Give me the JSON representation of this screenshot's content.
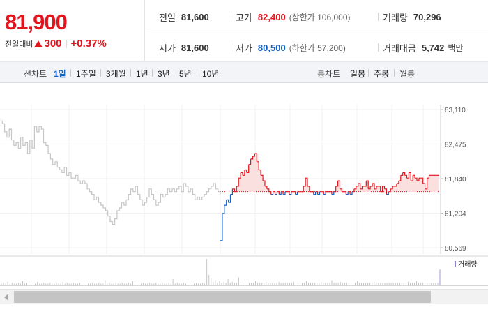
{
  "quote": {
    "price": "81,900",
    "change_label": "전일대비",
    "change_amount": "300",
    "change_pct": "+0.37%",
    "stats": [
      {
        "label": "전일",
        "value": "81,600",
        "sub": ""
      },
      {
        "label": "고가",
        "value": "82,400",
        "sub": "(상한가 106,000)",
        "tone": "up"
      },
      {
        "label": "거래량",
        "value": "70,296",
        "sub": ""
      },
      {
        "label": "시가",
        "value": "81,600",
        "sub": ""
      },
      {
        "label": "저가",
        "value": "80,500",
        "sub": "(하한가 57,200)",
        "tone": "dn"
      },
      {
        "label": "거래대금",
        "value": "5,742",
        "sub": "백만"
      }
    ],
    "colors": {
      "up": "#e4141e",
      "down": "#1261c4"
    }
  },
  "period": {
    "label": "선차트",
    "options": [
      "1일",
      "1주일",
      "3개월",
      "1년",
      "3년",
      "5년",
      "10년"
    ],
    "selected": "1일",
    "candle_label": "봉차트",
    "candle_options": [
      "일봉",
      "주봉",
      "월봉"
    ]
  },
  "chart_data": {
    "type": "line",
    "y_ticks": [
      "83,110",
      "82,475",
      "81,840",
      "81,204",
      "80,569"
    ],
    "y_tick_values": [
      83110,
      82475,
      81840,
      81204,
      80569
    ],
    "ylim": [
      80569,
      83110
    ],
    "baseline": 81600,
    "volume_label": "거래량",
    "series": [
      {
        "values": [
          82900,
          82850,
          82700,
          82600,
          82750,
          82550,
          82450,
          82500,
          82400,
          82600,
          82450,
          82500,
          82300,
          82550,
          82400,
          82800,
          82700,
          82800,
          82750,
          82500,
          82450,
          82300,
          82200,
          82100,
          82150,
          82050,
          82000,
          81950,
          82050,
          81900,
          81950,
          81850,
          81850,
          81900,
          81800,
          81750,
          81800,
          81750,
          81650,
          81600,
          81550,
          81450,
          81500,
          81400,
          81350,
          81300,
          81250,
          81150,
          81050,
          81000,
          81100,
          81250,
          81300,
          81400,
          81350,
          81450,
          81550,
          81650,
          81600,
          81700,
          81550,
          81450,
          81350,
          81400,
          81500,
          81650,
          81550,
          81450,
          81350,
          81400,
          81550,
          81500,
          81550,
          81650,
          81600,
          81650,
          81600,
          81650,
          81700,
          81600,
          81750,
          81700,
          81600,
          81650,
          81550,
          81450,
          81500,
          81450,
          81500,
          81550,
          81600,
          81650,
          81700,
          81750,
          81650,
          81600,
          81550
        ]
      },
      {
        "values": [
          80700,
          81200,
          81350,
          81450,
          81400,
          81550,
          81650,
          81600,
          81700,
          81850,
          81950,
          81900,
          82000,
          81950,
          82100,
          82200,
          82250,
          82300,
          82150,
          82000,
          81900,
          81800,
          81700,
          81650,
          81600,
          81550,
          81600,
          81550,
          81600,
          81550,
          81600,
          81550,
          81600,
          81600,
          81550,
          81600,
          81600,
          81550,
          81600,
          81600,
          81600,
          81700,
          81850,
          81700,
          81600,
          81600,
          81550,
          81600,
          81550,
          81600,
          81600,
          81550,
          81600,
          81600,
          81600,
          81550,
          81600,
          81700,
          81800,
          81650,
          81600,
          81600,
          81550,
          81600,
          81550,
          81600,
          81650,
          81700,
          81750,
          81650,
          81700,
          81700,
          81800,
          81650,
          81700,
          81750,
          81650,
          81700,
          81700,
          81600,
          81700,
          81650,
          81550,
          81600,
          81650,
          81700,
          81700,
          81750,
          81800,
          81900,
          81950,
          81900,
          81850,
          81950,
          81800,
          81900,
          81850,
          81800,
          81850,
          81850,
          81750,
          81650,
          81850,
          81900,
          81900,
          81900,
          81900,
          81900,
          81900
        ]
      }
    ],
    "volume": {
      "values": [
        2,
        3,
        2,
        4,
        2,
        3,
        2,
        2,
        3,
        2,
        5,
        2,
        3,
        2,
        2,
        3,
        2,
        4,
        2,
        2,
        3,
        2,
        2,
        3,
        2,
        2,
        3,
        2,
        2,
        4,
        2,
        3,
        2,
        2,
        3,
        2,
        2,
        3,
        2,
        2,
        3,
        2,
        2,
        3,
        2,
        2,
        3,
        2,
        2,
        6,
        2,
        3,
        2,
        2,
        3,
        2,
        2,
        3,
        2,
        2,
        3,
        2,
        5,
        2,
        3,
        2,
        2,
        3,
        2,
        2,
        3,
        2,
        2,
        3,
        2,
        2,
        3,
        2,
        2,
        3,
        2,
        7,
        2,
        3,
        2,
        2,
        3,
        2,
        2,
        3,
        2,
        2,
        3,
        2,
        2,
        3,
        2,
        30,
        12,
        8,
        4,
        6,
        3,
        5,
        3,
        4,
        3,
        7,
        3,
        4,
        3,
        3,
        9,
        4,
        3,
        3,
        4,
        3,
        3,
        3,
        5,
        3,
        3,
        3,
        3,
        4,
        3,
        3,
        3,
        3,
        3,
        4,
        3,
        3,
        3,
        3,
        3,
        3,
        4,
        3,
        3,
        3,
        3,
        3,
        5,
        3,
        3,
        3,
        3,
        3,
        3,
        4,
        3,
        3,
        3,
        3,
        6,
        3,
        3,
        3,
        4,
        3,
        3,
        3,
        3,
        3,
        3,
        3,
        5,
        3,
        3,
        3,
        3,
        3,
        3,
        3,
        4,
        3,
        3,
        3,
        3,
        3,
        3,
        3,
        3,
        3,
        3,
        3,
        3,
        3,
        3,
        3,
        4,
        3,
        3,
        3,
        5,
        3,
        3,
        3,
        3,
        3,
        3,
        3,
        3,
        3,
        3,
        18
      ]
    }
  }
}
